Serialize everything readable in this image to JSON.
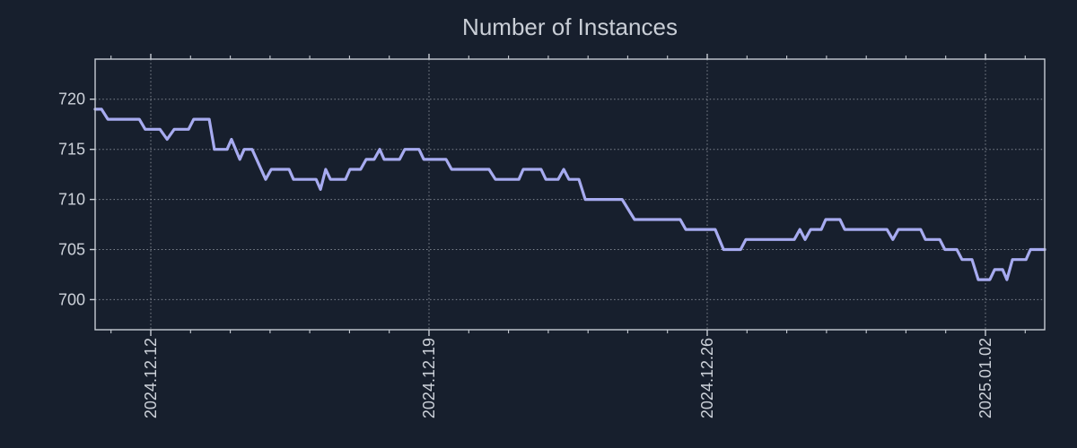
{
  "page": {
    "background_color": "#171f2d"
  },
  "chart_data": {
    "type": "line",
    "title": "Number of Instances",
    "legend": "none",
    "grid": "dotted",
    "x_axis": {
      "unit": "days relative to 2024-12-12",
      "xlim": [
        -1.4,
        22.49
      ],
      "major_ticks": [
        {
          "pos": 0,
          "label": "2024.12.12"
        },
        {
          "pos": 7,
          "label": "2024.12.19"
        },
        {
          "pos": 14,
          "label": "2024.12.26"
        },
        {
          "pos": 21,
          "label": "2025.01.02"
        }
      ],
      "minor_tick_interval": 1,
      "label_rotation_deg": 90
    },
    "y_axis": {
      "ylim": [
        697,
        724
      ],
      "ticks": [
        700,
        705,
        710,
        715,
        720
      ]
    },
    "series": [
      {
        "name": "instances",
        "color": "#a7abf0",
        "points": [
          [
            -1.4,
            719
          ],
          [
            -1.24,
            719
          ],
          [
            -1.08,
            718
          ],
          [
            -0.29,
            718
          ],
          [
            -0.14,
            717
          ],
          [
            0.23,
            717
          ],
          [
            0.41,
            716
          ],
          [
            0.59,
            717
          ],
          [
            0.95,
            717
          ],
          [
            1.08,
            718
          ],
          [
            1.47,
            718
          ],
          [
            1.6,
            715
          ],
          [
            1.92,
            715
          ],
          [
            2.03,
            716
          ],
          [
            2.24,
            714
          ],
          [
            2.35,
            715
          ],
          [
            2.55,
            715
          ],
          [
            2.89,
            712
          ],
          [
            3.03,
            713
          ],
          [
            3.48,
            713
          ],
          [
            3.59,
            712
          ],
          [
            4.16,
            712
          ],
          [
            4.27,
            711
          ],
          [
            4.4,
            713
          ],
          [
            4.52,
            712
          ],
          [
            4.9,
            712
          ],
          [
            5.01,
            713
          ],
          [
            5.28,
            713
          ],
          [
            5.42,
            714
          ],
          [
            5.62,
            714
          ],
          [
            5.76,
            715
          ],
          [
            5.87,
            714
          ],
          [
            6.26,
            714
          ],
          [
            6.39,
            715
          ],
          [
            6.75,
            715
          ],
          [
            6.87,
            714
          ],
          [
            7.43,
            714
          ],
          [
            7.57,
            713
          ],
          [
            8.51,
            713
          ],
          [
            8.67,
            712
          ],
          [
            9.26,
            712
          ],
          [
            9.37,
            713
          ],
          [
            9.82,
            713
          ],
          [
            9.94,
            712
          ],
          [
            10.25,
            712
          ],
          [
            10.39,
            713
          ],
          [
            10.52,
            712
          ],
          [
            10.77,
            712
          ],
          [
            10.93,
            710
          ],
          [
            11.86,
            710
          ],
          [
            12.17,
            708
          ],
          [
            13.32,
            708
          ],
          [
            13.46,
            707
          ],
          [
            14.2,
            707
          ],
          [
            14.41,
            705
          ],
          [
            14.84,
            705
          ],
          [
            14.97,
            706
          ],
          [
            16.19,
            706
          ],
          [
            16.33,
            707
          ],
          [
            16.46,
            706
          ],
          [
            16.6,
            707
          ],
          [
            16.87,
            707
          ],
          [
            16.98,
            708
          ],
          [
            17.34,
            708
          ],
          [
            17.46,
            707
          ],
          [
            18.52,
            707
          ],
          [
            18.67,
            706
          ],
          [
            18.81,
            707
          ],
          [
            19.37,
            707
          ],
          [
            19.49,
            706
          ],
          [
            19.85,
            706
          ],
          [
            19.98,
            705
          ],
          [
            20.28,
            705
          ],
          [
            20.41,
            704
          ],
          [
            20.66,
            704
          ],
          [
            20.82,
            702
          ],
          [
            21.11,
            702
          ],
          [
            21.23,
            703
          ],
          [
            21.43,
            703
          ],
          [
            21.54,
            702
          ],
          [
            21.68,
            704
          ],
          [
            22.02,
            704
          ],
          [
            22.13,
            705
          ],
          [
            22.49,
            705
          ]
        ]
      }
    ],
    "colors": {
      "background": "#171f2d",
      "text": "#ccd1d9",
      "spine": "#c7ccd4",
      "grid": "#a3a9b2",
      "line": "#a7abf0"
    }
  }
}
